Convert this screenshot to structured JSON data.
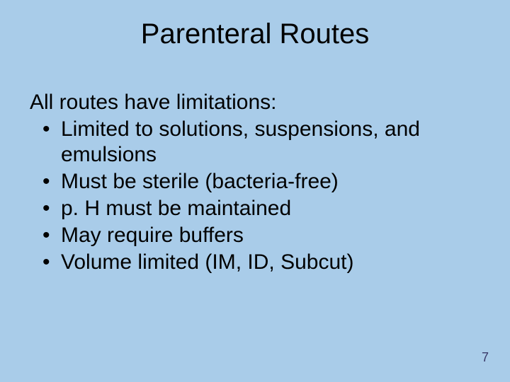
{
  "slide": {
    "background_color": "#a9cce9",
    "text_color": "#000000",
    "title": "Parenteral Routes",
    "title_fontsize": 40,
    "intro": "All routes have limitations:",
    "body_fontsize": 30,
    "body_line_height": 1.2,
    "bullets": [
      "Limited to solutions, suspensions, and emulsions",
      "Must be sterile (bacteria-free)",
      "p. H must be maintained",
      "May require buffers",
      "Volume limited (IM, ID, Subcut)"
    ],
    "page_number": "7",
    "page_number_fontsize": 18,
    "page_number_color": "#3a3a6a"
  }
}
